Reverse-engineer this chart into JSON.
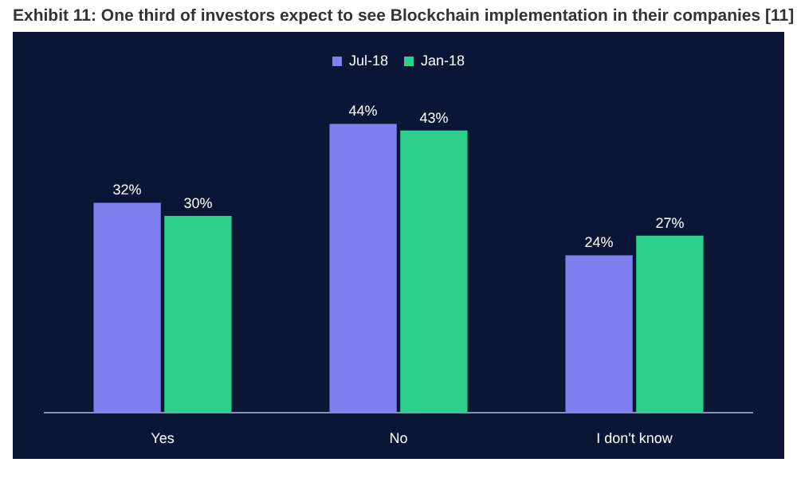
{
  "chart_data": {
    "type": "bar",
    "title": "Exhibit 11: One third of investors expect to see Blockchain implementation in their companies [11]",
    "categories": [
      "Yes",
      "No",
      "I don't know"
    ],
    "series": [
      {
        "name": "Jul-18",
        "color": "#7f7ff0",
        "values": [
          32,
          44,
          24
        ],
        "value_labels": [
          "32%",
          "44%",
          "24%"
        ]
      },
      {
        "name": "Jan-18",
        "color": "#2fcf8c",
        "values": [
          30,
          43,
          27
        ],
        "value_labels": [
          "30%",
          "43%",
          "27%"
        ]
      }
    ],
    "legend": "top",
    "grid": false
  }
}
